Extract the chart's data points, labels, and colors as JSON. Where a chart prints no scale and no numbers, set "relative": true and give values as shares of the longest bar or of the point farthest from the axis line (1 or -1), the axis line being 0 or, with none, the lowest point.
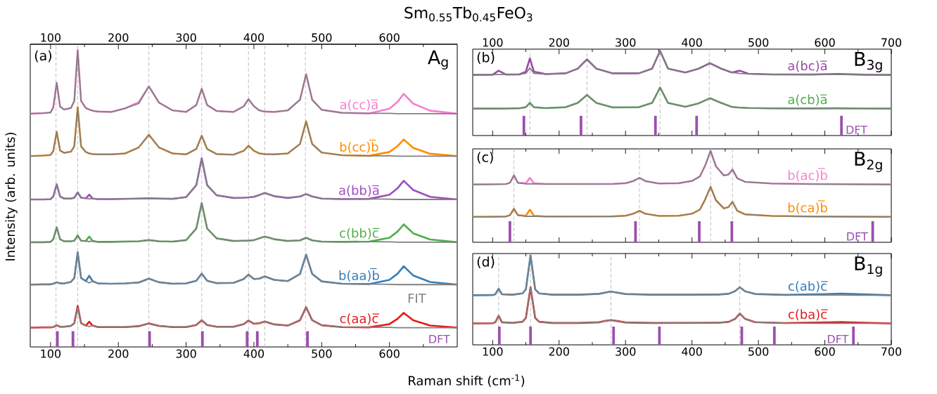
{
  "chart_data": [
    {
      "type": "line",
      "relative": true,
      "title": "Sm$_{0.55}$Tb$_{0.45}$FeO$_{3}$",
      "xlabel": "Raman shift (cm$^{-1}$)",
      "ylabel": "Intensity (arb. units)",
      "annotations": [
        "(a)",
        "A$_{g}$"
      ],
      "xlim": [
        70,
        700
      ],
      "xticks": [
        100,
        {
          "value": 150,
          "label": null
        },
        200,
        {
          "value": 250,
          "label": null
        },
        300,
        {
          "value": 350,
          "label": null
        },
        400,
        {
          "value": 450,
          "label": null
        },
        500,
        {
          "value": 550,
          "label": null
        },
        600,
        {
          "value": 650,
          "label": null
        }
      ],
      "x2lim": [
        70,
        700
      ],
      "x2ticks": [
        100,
        {
          "value": 150,
          "label": null
        },
        200,
        {
          "value": 250,
          "label": null
        },
        300,
        {
          "value": 350,
          "label": null
        },
        400,
        {
          "value": 450,
          "label": null
        },
        500,
        {
          "value": 550,
          "label": null
        },
        600,
        {
          "value": 650,
          "label": null
        }
      ],
      "x": [
        70,
        90,
        100,
        104,
        109,
        114,
        120,
        130,
        135,
        140,
        145,
        152,
        157,
        162,
        170,
        190,
        210,
        230,
        245,
        260,
        280,
        300,
        315,
        323,
        331,
        345,
        370,
        385,
        392,
        400,
        408,
        416,
        430,
        450,
        468,
        477,
        486,
        500,
        530,
        570,
        600,
        612,
        621,
        635,
        660,
        700
      ],
      "series": [
        {
          "name": "a(cc)a̅",
          "color": "#f57fcf",
          "values": [
            0.786,
            0.788,
            0.79,
            0.807,
            0.89,
            0.81,
            0.8,
            0.805,
            0.829,
            1.0,
            0.829,
            0.805,
            0.8,
            0.796,
            0.793,
            0.792,
            0.804,
            0.825,
            0.878,
            0.823,
            0.797,
            0.792,
            0.815,
            0.87,
            0.815,
            0.795,
            0.792,
            0.811,
            0.835,
            0.811,
            0.797,
            0.793,
            0.792,
            0.797,
            0.833,
            0.919,
            0.833,
            0.799,
            0.789,
            0.787,
            0.803,
            0.826,
            0.853,
            0.82,
            0.796,
            0.786
          ]
        },
        {
          "color": "#808080",
          "values": [
            0.786,
            0.788,
            0.79,
            0.807,
            0.89,
            0.81,
            0.8,
            0.805,
            0.829,
            1.0,
            0.829,
            0.805,
            0.8,
            0.796,
            0.793,
            0.792,
            0.804,
            0.82,
            0.878,
            0.823,
            0.797,
            0.792,
            0.815,
            0.87,
            0.815,
            0.795,
            0.792,
            0.811,
            0.835,
            0.811,
            0.797,
            0.793,
            0.792,
            0.797,
            0.833,
            0.919,
            0.833,
            0.799,
            0.789,
            0.787,
            0.787,
            0.786,
            0.786,
            0.786,
            0.786,
            0.786
          ]
        },
        {
          "name": "b(cc)b̅",
          "color": "#ff8c00",
          "values": [
            0.643,
            0.645,
            0.647,
            0.66,
            0.725,
            0.662,
            0.654,
            0.658,
            0.676,
            0.808,
            0.676,
            0.657,
            0.652,
            0.65,
            0.649,
            0.649,
            0.652,
            0.672,
            0.715,
            0.672,
            0.652,
            0.649,
            0.667,
            0.712,
            0.667,
            0.65,
            0.648,
            0.661,
            0.678,
            0.661,
            0.652,
            0.65,
            0.649,
            0.652,
            0.684,
            0.76,
            0.684,
            0.655,
            0.646,
            0.644,
            0.657,
            0.677,
            0.699,
            0.671,
            0.651,
            0.643
          ]
        },
        {
          "color": "#808080",
          "values": [
            0.643,
            0.645,
            0.647,
            0.66,
            0.725,
            0.662,
            0.654,
            0.658,
            0.676,
            0.808,
            0.676,
            0.657,
            0.652,
            0.65,
            0.649,
            0.649,
            0.652,
            0.672,
            0.715,
            0.672,
            0.652,
            0.649,
            0.667,
            0.712,
            0.667,
            0.65,
            0.648,
            0.661,
            0.678,
            0.661,
            0.652,
            0.65,
            0.649,
            0.652,
            0.684,
            0.76,
            0.684,
            0.655,
            0.646,
            0.644,
            0.644,
            0.643,
            0.643,
            0.643,
            0.643,
            0.643
          ]
        },
        {
          "name": "a(bb)a̅",
          "color": "#9d4fc1",
          "values": [
            0.497,
            0.497,
            0.498,
            0.507,
            0.548,
            0.507,
            0.5,
            0.5,
            0.503,
            0.521,
            0.503,
            0.501,
            0.513,
            0.5,
            0.498,
            0.498,
            0.499,
            0.5,
            0.501,
            0.5,
            0.499,
            0.505,
            0.545,
            0.636,
            0.545,
            0.511,
            0.502,
            0.503,
            0.504,
            0.506,
            0.512,
            0.519,
            0.508,
            0.502,
            0.507,
            0.515,
            0.507,
            0.5,
            0.498,
            0.499,
            0.513,
            0.535,
            0.56,
            0.529,
            0.506,
            0.497
          ]
        },
        {
          "color": "#808080",
          "values": [
            0.497,
            0.497,
            0.498,
            0.507,
            0.548,
            0.507,
            0.5,
            0.5,
            0.503,
            0.521,
            0.503,
            0.501,
            0.499,
            0.5,
            0.498,
            0.498,
            0.499,
            0.5,
            0.501,
            0.5,
            0.499,
            0.505,
            0.545,
            0.636,
            0.545,
            0.511,
            0.502,
            0.503,
            0.504,
            0.506,
            0.512,
            0.519,
            0.508,
            0.502,
            0.507,
            0.515,
            0.507,
            0.5,
            0.498,
            0.499,
            0.498,
            0.497,
            0.497,
            0.497,
            0.497,
            0.497
          ]
        },
        {
          "name": "c(bb)c̅",
          "color": "#4daf4a",
          "values": [
            0.353,
            0.353,
            0.354,
            0.363,
            0.403,
            0.363,
            0.356,
            0.356,
            0.358,
            0.376,
            0.358,
            0.357,
            0.372,
            0.357,
            0.354,
            0.354,
            0.355,
            0.356,
            0.36,
            0.356,
            0.355,
            0.36,
            0.399,
            0.485,
            0.399,
            0.366,
            0.357,
            0.358,
            0.358,
            0.36,
            0.366,
            0.372,
            0.363,
            0.357,
            0.359,
            0.368,
            0.359,
            0.355,
            0.354,
            0.355,
            0.368,
            0.389,
            0.413,
            0.383,
            0.362,
            0.353
          ]
        },
        {
          "color": "#808080",
          "values": [
            0.353,
            0.353,
            0.354,
            0.363,
            0.403,
            0.363,
            0.356,
            0.356,
            0.358,
            0.376,
            0.358,
            0.357,
            0.355,
            0.357,
            0.354,
            0.354,
            0.355,
            0.356,
            0.36,
            0.356,
            0.355,
            0.36,
            0.399,
            0.485,
            0.399,
            0.366,
            0.357,
            0.358,
            0.358,
            0.36,
            0.366,
            0.372,
            0.363,
            0.357,
            0.359,
            0.368,
            0.359,
            0.355,
            0.354,
            0.355,
            0.354,
            0.353,
            0.353,
            0.353,
            0.353,
            0.353
          ]
        },
        {
          "name": "b(aa)b̅",
          "color": "#377eb8",
          "values": [
            0.21,
            0.211,
            0.211,
            0.213,
            0.218,
            0.214,
            0.214,
            0.219,
            0.232,
            0.319,
            0.232,
            0.222,
            0.24,
            0.222,
            0.214,
            0.213,
            0.214,
            0.217,
            0.23,
            0.218,
            0.213,
            0.214,
            0.223,
            0.247,
            0.223,
            0.215,
            0.216,
            0.229,
            0.244,
            0.229,
            0.23,
            0.238,
            0.226,
            0.222,
            0.246,
            0.311,
            0.246,
            0.221,
            0.213,
            0.212,
            0.226,
            0.247,
            0.272,
            0.241,
            0.219,
            0.21
          ]
        },
        {
          "color": "#808080",
          "values": [
            0.21,
            0.211,
            0.211,
            0.213,
            0.218,
            0.214,
            0.214,
            0.219,
            0.232,
            0.319,
            0.232,
            0.222,
            0.216,
            0.222,
            0.214,
            0.213,
            0.214,
            0.217,
            0.23,
            0.218,
            0.213,
            0.214,
            0.223,
            0.247,
            0.223,
            0.215,
            0.216,
            0.229,
            0.244,
            0.229,
            0.23,
            0.238,
            0.226,
            0.222,
            0.246,
            0.311,
            0.246,
            0.221,
            0.213,
            0.212,
            0.211,
            0.21,
            0.21,
            0.21,
            0.21,
            0.21
          ]
        },
        {
          "name": "c(aa)c̅",
          "color": "#e41a1c",
          "values": [
            0.065,
            0.066,
            0.066,
            0.067,
            0.073,
            0.068,
            0.068,
            0.071,
            0.08,
            0.138,
            0.08,
            0.072,
            0.085,
            0.072,
            0.067,
            0.067,
            0.067,
            0.07,
            0.079,
            0.071,
            0.067,
            0.067,
            0.074,
            0.09,
            0.074,
            0.068,
            0.068,
            0.077,
            0.089,
            0.078,
            0.08,
            0.086,
            0.076,
            0.072,
            0.09,
            0.134,
            0.09,
            0.073,
            0.067,
            0.066,
            0.077,
            0.095,
            0.115,
            0.09,
            0.072,
            0.065
          ]
        },
        {
          "name": "FIT",
          "color": "#808080",
          "values": [
            0.065,
            0.066,
            0.066,
            0.067,
            0.073,
            0.068,
            0.068,
            0.071,
            0.08,
            0.132,
            0.08,
            0.072,
            0.069,
            0.072,
            0.067,
            0.067,
            0.067,
            0.07,
            0.079,
            0.071,
            0.067,
            0.067,
            0.074,
            0.09,
            0.074,
            0.068,
            0.068,
            0.077,
            0.089,
            0.078,
            0.08,
            0.086,
            0.076,
            0.072,
            0.09,
            0.134,
            0.09,
            0.073,
            0.067,
            0.066,
            0.066,
            0.065,
            0.065,
            0.065,
            0.065,
            0.065
          ]
        },
        {
          "name": "DFT",
          "type": "bar",
          "color": "#9b4fad",
          "x": [
            110,
            133,
            246,
            324,
            390,
            405,
            479
          ],
          "values": [
            0.053,
            0.053,
            0.053,
            0.053,
            0.053,
            0.053,
            0.053
          ]
        }
      ],
      "ref_lines": [
        {
          "axis": "x",
          "value": 108,
          "color": "#c0c0c0",
          "line_style": "dashed"
        },
        {
          "axis": "x",
          "value": 140,
          "color": "#c0c0c0",
          "line_style": "dashed"
        },
        {
          "axis": "x",
          "value": 245,
          "color": "#c0c0c0",
          "line_style": "dashed"
        },
        {
          "axis": "x",
          "value": 323,
          "color": "#c0c0c0",
          "line_style": "dashed"
        },
        {
          "axis": "x",
          "value": 392,
          "color": "#c0c0c0",
          "line_style": "dashed"
        },
        {
          "axis": "x",
          "value": 416,
          "color": "#c0c0c0",
          "line_style": "dashed"
        },
        {
          "axis": "x",
          "value": 476,
          "color": "#c0c0c0",
          "line_style": "dashed"
        }
      ]
    },
    {
      "type": "line",
      "relative": true,
      "annotations": [
        "(b)",
        "B$_{3g}$"
      ],
      "xlim": [
        70,
        700
      ],
      "xticks": [
        100,
        {
          "value": 150,
          "label": null
        },
        200,
        {
          "value": 250,
          "label": null
        },
        300,
        {
          "value": 350,
          "label": null
        },
        400,
        {
          "value": 450,
          "label": null
        },
        500,
        {
          "value": 550,
          "label": null
        },
        600,
        {
          "value": 650,
          "label": null
        },
        700
      ],
      "x": [
        70,
        100,
        109,
        120,
        140,
        150,
        156,
        162,
        180,
        210,
        228,
        242,
        256,
        280,
        320,
        340,
        352,
        364,
        390,
        410,
        427,
        444,
        460,
        472,
        485,
        520,
        580,
        620,
        660,
        700
      ],
      "series": [
        {
          "name": "a(bc)a̅",
          "color": "#984ea3",
          "values": [
            0.716,
            0.718,
            0.766,
            0.72,
            0.722,
            0.755,
            0.912,
            0.755,
            0.725,
            0.735,
            0.79,
            0.9,
            0.79,
            0.735,
            0.735,
            0.79,
            1.0,
            0.79,
            0.745,
            0.79,
            0.854,
            0.79,
            0.745,
            0.766,
            0.73,
            0.722,
            0.72,
            0.728,
            0.718,
            0.716
          ]
        },
        {
          "color": "#808080",
          "values": [
            0.716,
            0.718,
            0.72,
            0.72,
            0.722,
            0.735,
            0.797,
            0.735,
            0.725,
            0.735,
            0.79,
            0.9,
            0.79,
            0.735,
            0.735,
            0.79,
            1.0,
            0.79,
            0.745,
            0.79,
            0.854,
            0.79,
            0.745,
            0.732,
            0.728,
            0.722,
            0.72,
            0.72,
            0.718,
            0.716
          ]
        },
        {
          "name": "a(cb)a̅",
          "color": "#4daf4a",
          "values": [
            0.318,
            0.318,
            0.318,
            0.319,
            0.322,
            0.335,
            0.387,
            0.335,
            0.324,
            0.335,
            0.385,
            0.479,
            0.385,
            0.333,
            0.335,
            0.385,
            0.567,
            0.385,
            0.34,
            0.38,
            0.441,
            0.385,
            0.338,
            0.33,
            0.325,
            0.321,
            0.32,
            0.322,
            0.319,
            0.318
          ]
        },
        {
          "color": "#808080",
          "values": [
            0.318,
            0.318,
            0.318,
            0.319,
            0.322,
            0.335,
            0.387,
            0.335,
            0.324,
            0.335,
            0.385,
            0.479,
            0.385,
            0.333,
            0.335,
            0.385,
            0.567,
            0.385,
            0.34,
            0.38,
            0.441,
            0.385,
            0.338,
            0.33,
            0.325,
            0.321,
            0.32,
            0.32,
            0.319,
            0.318
          ]
        },
        {
          "name": "DFT",
          "type": "bar",
          "color": "#9b4fad",
          "x": [
            147,
            233,
            345,
            407,
            625
          ],
          "values": [
            0.233,
            0.233,
            0.233,
            0.233,
            0.233
          ]
        }
      ],
      "ref_lines": [
        {
          "axis": "x",
          "value": 156,
          "color": "#c0c0c0",
          "line_style": "dashed"
        },
        {
          "axis": "x",
          "value": 242,
          "color": "#c0c0c0",
          "line_style": "dashed"
        },
        {
          "axis": "x",
          "value": 352,
          "color": "#c0c0c0",
          "line_style": "dashed"
        },
        {
          "axis": "x",
          "value": 426,
          "color": "#c0c0c0",
          "line_style": "dashed"
        }
      ]
    },
    {
      "type": "line",
      "relative": true,
      "annotations": [
        "(c)",
        "B$_{2g}$"
      ],
      "tick_labels": false,
      "xlim": [
        70,
        700
      ],
      "xticks": [
        100,
        {
          "value": 150,
          "label": null
        },
        200,
        {
          "value": 250,
          "label": null
        },
        300,
        {
          "value": 350,
          "label": null
        },
        400,
        {
          "value": 450,
          "label": null
        },
        500,
        {
          "value": 550,
          "label": null
        },
        600,
        {
          "value": 650,
          "label": null
        },
        700
      ],
      "x": [
        70,
        100,
        120,
        126,
        132,
        138,
        150,
        156,
        162,
        180,
        220,
        280,
        300,
        312,
        321,
        330,
        350,
        380,
        400,
        412,
        420,
        428,
        436,
        448,
        455,
        461,
        468,
        480,
        520,
        580,
        640,
        700
      ],
      "series": [
        {
          "name": "b(ac)b̅",
          "color": "#f57fcf",
          "values": [
            0.632,
            0.633,
            0.636,
            0.65,
            0.731,
            0.65,
            0.645,
            0.704,
            0.645,
            0.636,
            0.636,
            0.637,
            0.645,
            0.67,
            0.704,
            0.668,
            0.642,
            0.645,
            0.67,
            0.72,
            0.84,
            1.0,
            0.83,
            0.73,
            0.74,
            0.796,
            0.7,
            0.66,
            0.642,
            0.636,
            0.634,
            0.632
          ]
        },
        {
          "color": "#808080",
          "values": [
            0.632,
            0.633,
            0.636,
            0.65,
            0.731,
            0.65,
            0.637,
            0.64,
            0.637,
            0.636,
            0.636,
            0.637,
            0.645,
            0.67,
            0.704,
            0.668,
            0.642,
            0.645,
            0.67,
            0.72,
            0.84,
            1.0,
            0.83,
            0.73,
            0.74,
            0.796,
            0.7,
            0.66,
            0.642,
            0.636,
            0.634,
            0.632
          ]
        },
        {
          "name": "b(ca)b̅",
          "color": "#ff8c00",
          "values": [
            0.278,
            0.279,
            0.282,
            0.296,
            0.366,
            0.296,
            0.29,
            0.356,
            0.29,
            0.282,
            0.282,
            0.283,
            0.29,
            0.313,
            0.343,
            0.312,
            0.288,
            0.29,
            0.312,
            0.357,
            0.47,
            0.606,
            0.46,
            0.37,
            0.385,
            0.442,
            0.345,
            0.305,
            0.288,
            0.282,
            0.28,
            0.278
          ]
        },
        {
          "color": "#808080",
          "values": [
            0.278,
            0.279,
            0.282,
            0.296,
            0.366,
            0.296,
            0.283,
            0.285,
            0.283,
            0.282,
            0.282,
            0.283,
            0.29,
            0.313,
            0.343,
            0.312,
            0.288,
            0.29,
            0.312,
            0.357,
            0.47,
            0.606,
            0.46,
            0.37,
            0.385,
            0.442,
            0.345,
            0.305,
            0.288,
            0.282,
            0.28,
            0.278
          ]
        },
        {
          "name": "DFT",
          "type": "bar",
          "color": "#9b4fad",
          "x": [
            126,
            315,
            411,
            460,
            672
          ],
          "values": [
            0.23,
            0.23,
            0.23,
            0.23,
            0.23
          ]
        }
      ],
      "ref_lines": [
        {
          "axis": "x",
          "value": 132,
          "color": "#c0c0c0",
          "line_style": "dashed"
        },
        {
          "axis": "x",
          "value": 321,
          "color": "#c0c0c0",
          "line_style": "dashed"
        },
        {
          "axis": "x",
          "value": 428,
          "color": "#c0c0c0",
          "line_style": "dashed"
        },
        {
          "axis": "x",
          "value": 461,
          "color": "#c0c0c0",
          "line_style": "dashed"
        }
      ]
    },
    {
      "type": "line",
      "relative": true,
      "annotations": [
        "(d)",
        "B$_{1g}$"
      ],
      "xlim": [
        70,
        700
      ],
      "xticks": [
        100,
        {
          "value": 150,
          "label": null
        },
        200,
        {
          "value": 250,
          "label": null
        },
        300,
        {
          "value": 350,
          "label": null
        },
        400,
        {
          "value": 450,
          "label": null
        },
        500,
        {
          "value": 550,
          "label": null
        },
        600,
        {
          "value": 650,
          "label": null
        },
        700
      ],
      "x": [
        70,
        100,
        104,
        109,
        114,
        130,
        145,
        150,
        157,
        164,
        170,
        190,
        230,
        260,
        270,
        278,
        286,
        300,
        340,
        400,
        440,
        455,
        465,
        472,
        480,
        495,
        540,
        600,
        625,
        650,
        700
      ],
      "series": [
        {
          "name": "c(ab)c̅",
          "color": "#377eb8",
          "values": [
            0.554,
            0.556,
            0.565,
            0.627,
            0.565,
            0.56,
            0.575,
            0.62,
            1.0,
            0.62,
            0.575,
            0.56,
            0.56,
            0.57,
            0.585,
            0.596,
            0.585,
            0.568,
            0.56,
            0.56,
            0.562,
            0.57,
            0.6,
            0.643,
            0.598,
            0.568,
            0.558,
            0.566,
            0.573,
            0.566,
            0.554
          ]
        },
        {
          "color": "#808080",
          "values": [
            0.554,
            0.556,
            0.565,
            0.627,
            0.565,
            0.56,
            0.575,
            0.62,
            1.0,
            0.62,
            0.575,
            0.56,
            0.56,
            0.57,
            0.585,
            0.596,
            0.585,
            0.568,
            0.56,
            0.56,
            0.562,
            0.57,
            0.6,
            0.643,
            0.598,
            0.568,
            0.558,
            0.556,
            0.556,
            0.555,
            0.554
          ]
        },
        {
          "name": "c(ba)c̅",
          "color": "#e41a1c",
          "values": [
            0.239,
            0.241,
            0.252,
            0.325,
            0.252,
            0.245,
            0.258,
            0.3,
            0.643,
            0.3,
            0.258,
            0.244,
            0.244,
            0.252,
            0.268,
            0.277,
            0.268,
            0.25,
            0.244,
            0.245,
            0.247,
            0.256,
            0.29,
            0.35,
            0.29,
            0.253,
            0.243,
            0.25,
            0.255,
            0.249,
            0.239
          ]
        },
        {
          "color": "#808080",
          "values": [
            0.239,
            0.241,
            0.252,
            0.325,
            0.252,
            0.245,
            0.258,
            0.3,
            0.643,
            0.3,
            0.258,
            0.244,
            0.244,
            0.252,
            0.268,
            0.277,
            0.268,
            0.25,
            0.244,
            0.245,
            0.247,
            0.256,
            0.29,
            0.35,
            0.29,
            0.253,
            0.243,
            0.241,
            0.241,
            0.24,
            0.239
          ]
        },
        {
          "name": "DFT",
          "type": "bar",
          "color": "#9b4fad",
          "x": [
            110,
            157,
            282,
            351,
            475,
            524,
            643
          ],
          "values": [
            0.204,
            0.204,
            0.204,
            0.204,
            0.204,
            0.204,
            0.204
          ]
        }
      ],
      "ref_lines": [
        {
          "axis": "x",
          "value": 109,
          "color": "#c0c0c0",
          "line_style": "dashed"
        },
        {
          "axis": "x",
          "value": 157,
          "color": "#c0c0c0",
          "line_style": "dashed"
        },
        {
          "axis": "x",
          "value": 278,
          "color": "#c0c0c0",
          "line_style": "dashed"
        },
        {
          "axis": "x",
          "value": 472,
          "color": "#c0c0c0",
          "line_style": "dashed"
        }
      ]
    }
  ]
}
